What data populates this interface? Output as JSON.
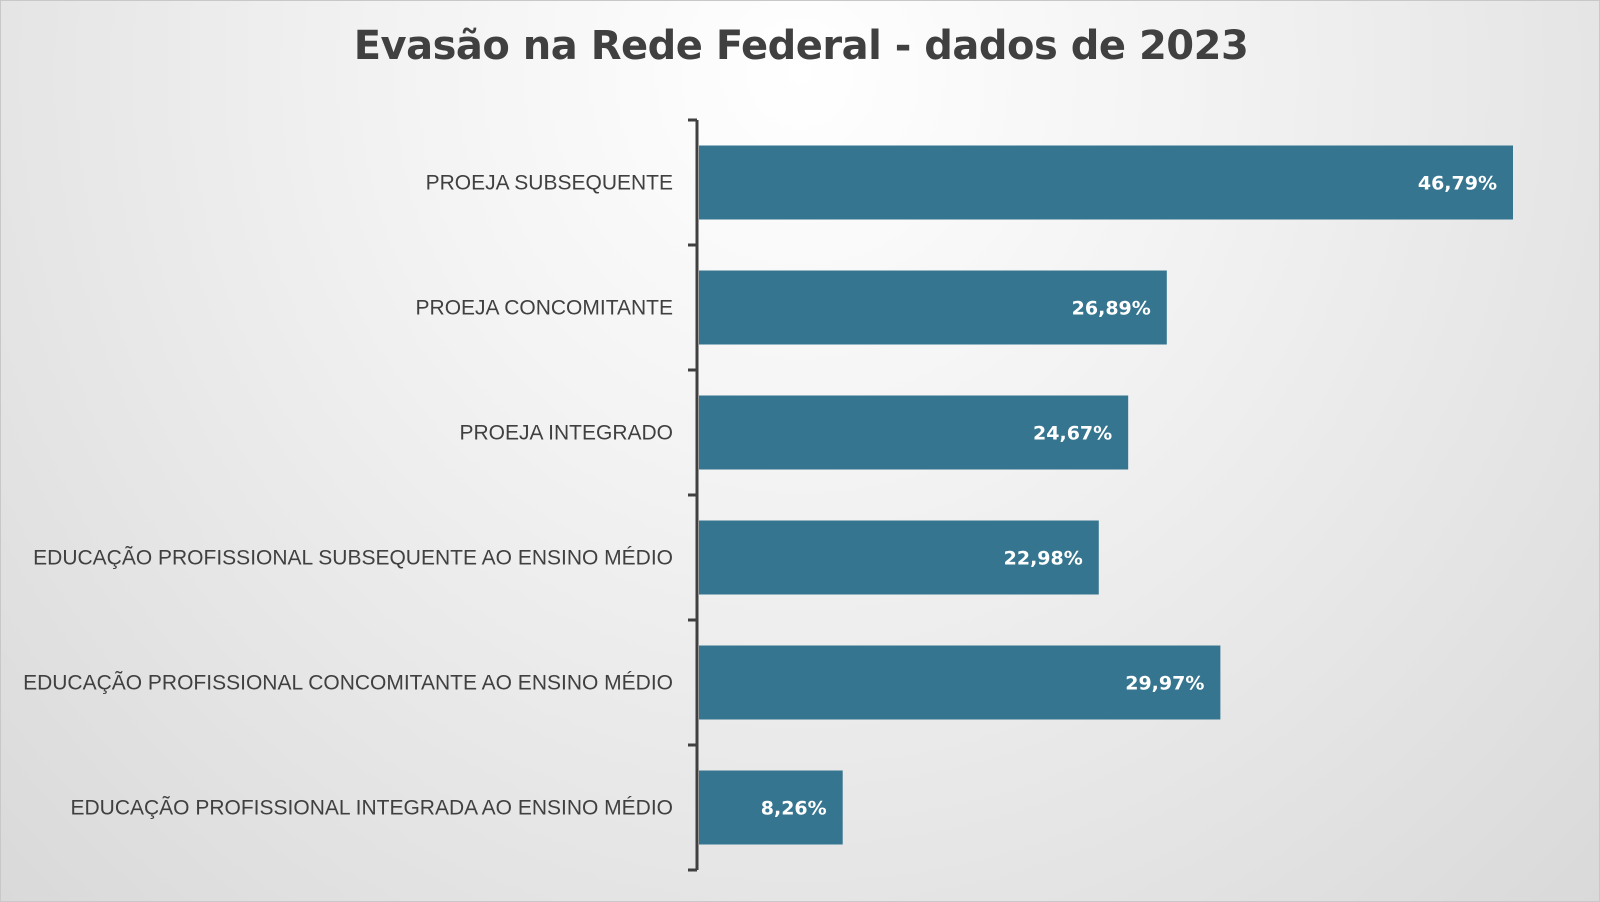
{
  "chart_data": {
    "type": "bar",
    "orientation": "horizontal",
    "title": "Evasão na Rede Federal - dados de 2023",
    "categories": [
      "PROEJA SUBSEQUENTE",
      "PROEJA CONCOMITANTE",
      "PROEJA INTEGRADO",
      "EDUCAÇÃO PROFISSIONAL SUBSEQUENTE AO ENSINO MÉDIO",
      "EDUCAÇÃO PROFISSIONAL CONCOMITANTE AO ENSINO MÉDIO",
      "EDUCAÇÃO PROFISSIONAL INTEGRADA AO ENSINO MÉDIO"
    ],
    "values": [
      46.79,
      26.89,
      24.67,
      22.98,
      29.97,
      8.26
    ],
    "value_labels": [
      "46,79%",
      "26,89%",
      "24,67%",
      "22,98%",
      "29,97%",
      "8,26%"
    ],
    "xlim": [
      0,
      50
    ],
    "grid": false,
    "legend": "none",
    "bar_color": "#36758F",
    "axis_color": "#404040"
  }
}
